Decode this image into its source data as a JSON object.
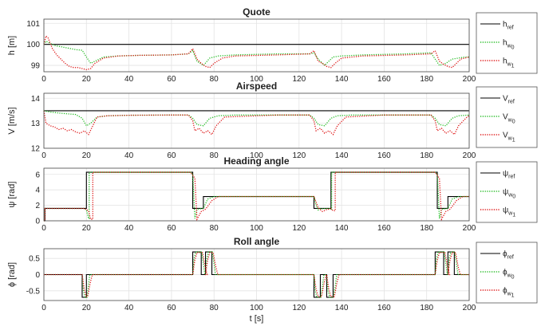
{
  "chart_data": [
    {
      "type": "line",
      "title": "Quote",
      "ylabel": "h [m]",
      "xlabel": "",
      "xlim": [
        0,
        200
      ],
      "ylim": [
        98.7,
        101.2
      ],
      "xticks": [
        "0",
        "20",
        "40",
        "60",
        "80",
        "100",
        "120",
        "140",
        "160",
        "180",
        "200"
      ],
      "yticks": [
        "99",
        "100",
        "101"
      ],
      "ytick_values": [
        99,
        100,
        101
      ],
      "grid": true,
      "legend_position": "right",
      "series": [
        {
          "name": "h",
          "sub": "ref",
          "color": "#000000",
          "dash": "solid",
          "x": [
            0,
            200
          ],
          "y": [
            100,
            100
          ]
        },
        {
          "name": "h",
          "sub": "w0",
          "sub_main": "w",
          "sub_sub": "0",
          "color": "#22bb22",
          "dash": "dotted",
          "x": [
            0,
            1,
            3,
            5,
            10,
            15,
            18,
            20,
            22,
            24,
            28,
            35,
            45,
            60,
            68,
            70,
            72,
            75,
            78,
            82,
            90,
            110,
            125,
            127,
            129,
            132,
            134,
            136,
            140,
            150,
            170,
            182,
            184,
            186,
            189,
            192,
            195,
            198,
            200
          ],
          "y": [
            100.0,
            100.15,
            100.05,
            99.95,
            99.85,
            99.75,
            99.72,
            99.4,
            99.1,
            99.2,
            99.4,
            99.45,
            99.48,
            99.5,
            99.55,
            99.7,
            99.2,
            99.0,
            99.35,
            99.45,
            99.5,
            99.55,
            99.55,
            99.6,
            99.3,
            99.0,
            99.2,
            99.4,
            99.45,
            99.5,
            99.55,
            99.6,
            99.3,
            99.0,
            99.1,
            99.3,
            99.35,
            99.4,
            99.4
          ]
        },
        {
          "name": "h",
          "sub": "w1",
          "sub_main": "w",
          "sub_sub": "1",
          "color": "#dd1111",
          "dash": "dotted",
          "x": [
            0,
            1,
            2,
            4,
            6,
            8,
            10,
            12,
            14,
            16,
            18,
            20,
            22,
            24,
            28,
            35,
            45,
            60,
            68,
            70,
            72,
            74,
            76,
            78,
            80,
            84,
            90,
            110,
            125,
            127,
            129,
            131,
            133,
            135,
            137,
            140,
            150,
            170,
            182,
            184,
            186,
            188,
            190,
            192,
            194,
            196,
            198,
            200
          ],
          "y": [
            100.0,
            100.4,
            100.3,
            99.8,
            99.5,
            99.3,
            99.1,
            98.95,
            98.9,
            98.9,
            98.85,
            98.8,
            98.85,
            99.1,
            99.35,
            99.45,
            99.48,
            99.5,
            99.55,
            99.8,
            99.3,
            99.1,
            98.95,
            98.9,
            99.1,
            99.35,
            99.45,
            99.5,
            99.55,
            99.7,
            99.2,
            99.1,
            98.95,
            98.9,
            99.1,
            99.35,
            99.45,
            99.5,
            99.55,
            99.7,
            99.2,
            99.05,
            98.95,
            98.9,
            99.1,
            99.3,
            99.35,
            99.4
          ]
        }
      ]
    },
    {
      "type": "line",
      "title": "Airspeed",
      "ylabel": "V [m/s]",
      "xlabel": "",
      "xlim": [
        0,
        200
      ],
      "ylim": [
        12,
        14.2
      ],
      "xticks": [
        "0",
        "20",
        "40",
        "60",
        "80",
        "100",
        "120",
        "140",
        "160",
        "180",
        "200"
      ],
      "yticks": [
        "12",
        "13",
        "14"
      ],
      "ytick_values": [
        12,
        13,
        14
      ],
      "grid": true,
      "legend_position": "right",
      "series": [
        {
          "name": "V",
          "sub": "ref",
          "color": "#000000",
          "dash": "solid",
          "x": [
            0,
            200
          ],
          "y": [
            13.5,
            13.5
          ]
        },
        {
          "name": "V",
          "sub": "w0",
          "sub_main": "w",
          "sub_sub": "0",
          "color": "#22bb22",
          "dash": "dotted",
          "x": [
            0,
            3,
            8,
            15,
            18,
            20,
            22,
            25,
            30,
            40,
            60,
            68,
            70,
            72,
            75,
            78,
            82,
            90,
            110,
            125,
            127,
            129,
            132,
            135,
            138,
            145,
            160,
            182,
            184,
            186,
            189,
            192,
            195,
            200
          ],
          "y": [
            13.5,
            13.45,
            13.4,
            13.35,
            13.2,
            12.9,
            13.0,
            13.25,
            13.3,
            13.32,
            13.33,
            13.33,
            13.2,
            12.95,
            12.9,
            13.2,
            13.3,
            13.33,
            13.33,
            13.33,
            13.2,
            12.95,
            12.9,
            13.2,
            13.3,
            13.33,
            13.33,
            13.33,
            13.2,
            12.95,
            12.9,
            13.2,
            13.3,
            13.33
          ]
        },
        {
          "name": "V",
          "sub": "w1",
          "sub_main": "w",
          "sub_sub": "1",
          "color": "#dd1111",
          "dash": "dotted",
          "x": [
            0,
            1,
            3,
            5,
            7,
            9,
            11,
            13,
            15,
            17,
            19,
            21,
            23,
            25,
            30,
            40,
            60,
            68,
            70,
            71,
            73,
            75,
            77,
            79,
            81,
            85,
            110,
            125,
            127,
            128,
            130,
            132,
            134,
            136,
            138,
            142,
            160,
            182,
            184,
            185,
            187,
            189,
            191,
            193,
            195,
            199,
            200
          ],
          "y": [
            13.5,
            13.0,
            12.9,
            12.85,
            12.75,
            12.8,
            12.7,
            12.75,
            12.65,
            12.6,
            12.7,
            12.55,
            12.9,
            13.25,
            13.3,
            13.32,
            13.33,
            13.33,
            13.1,
            12.7,
            12.8,
            12.6,
            12.7,
            12.55,
            12.9,
            13.25,
            13.33,
            13.33,
            13.1,
            12.7,
            12.8,
            12.6,
            12.7,
            12.55,
            12.9,
            13.25,
            13.33,
            13.33,
            13.1,
            12.7,
            12.8,
            12.6,
            12.7,
            12.55,
            12.9,
            13.25,
            13.3
          ]
        }
      ]
    },
    {
      "type": "line",
      "title": "Heading angle",
      "ylabel": "ψ [rad]",
      "xlabel": "",
      "xlim": [
        0,
        200
      ],
      "ylim": [
        0,
        6.8
      ],
      "xticks": [
        "0",
        "20",
        "40",
        "60",
        "80",
        "100",
        "120",
        "140",
        "160",
        "180",
        "200"
      ],
      "yticks": [
        "0",
        "2",
        "4",
        "6"
      ],
      "ytick_values": [
        0,
        2,
        4,
        6
      ],
      "grid": true,
      "legend_position": "right",
      "series": [
        {
          "name": "ψ",
          "sub": "ref",
          "color": "#000000",
          "dash": "solid",
          "x": [
            0,
            0.5,
            0.5,
            20,
            20,
            70,
            70,
            75,
            75,
            127,
            127,
            135,
            135,
            185,
            185,
            190,
            190,
            200
          ],
          "y": [
            0,
            0,
            1.6,
            1.6,
            6.28,
            6.28,
            1.6,
            1.6,
            3.14,
            3.14,
            1.6,
            1.6,
            6.28,
            6.28,
            1.6,
            1.6,
            3.14,
            3.14
          ]
        },
        {
          "name": "ψ",
          "sub": "w0",
          "sub_main": "w",
          "sub_sub": "0",
          "color": "#22bb22",
          "dash": "dotted",
          "x": [
            0,
            0.5,
            0.5,
            19,
            20,
            21,
            21.3,
            21.3,
            69,
            70,
            71,
            72,
            75,
            77,
            80,
            127,
            128,
            129,
            130,
            134,
            135,
            135.3,
            135.3,
            184,
            185,
            186,
            187,
            190,
            192,
            195,
            200
          ],
          "y": [
            0,
            0,
            1.6,
            1.6,
            1.4,
            0.3,
            0.3,
            6.28,
            6.28,
            6.0,
            0.3,
            1.5,
            1.6,
            2.8,
            3.14,
            3.14,
            2.0,
            1.4,
            1.55,
            1.6,
            1.5,
            1.5,
            6.28,
            6.28,
            6.0,
            0.3,
            1.5,
            1.6,
            2.8,
            3.14,
            3.14
          ]
        },
        {
          "name": "ψ",
          "sub": "w1",
          "sub_main": "w",
          "sub_sub": "1",
          "color": "#dd1111",
          "dash": "dotted",
          "x": [
            0,
            0.5,
            0.5,
            19,
            21,
            22,
            23,
            23,
            69,
            71,
            72,
            74,
            76,
            79,
            82,
            127,
            129,
            131,
            133,
            135,
            136,
            137,
            137,
            184,
            186,
            187,
            189,
            191,
            194,
            197,
            200
          ],
          "y": [
            0,
            0,
            1.6,
            1.6,
            1.3,
            0.2,
            0.2,
            6.28,
            6.28,
            5.5,
            0.2,
            1.2,
            1.5,
            2.6,
            3.14,
            3.14,
            1.7,
            1.2,
            1.45,
            1.55,
            1.3,
            1.3,
            6.28,
            6.28,
            5.5,
            0.2,
            1.2,
            1.5,
            2.6,
            3.14,
            3.14
          ]
        }
      ]
    },
    {
      "type": "line",
      "title": "Roll angle",
      "ylabel": "ϕ [rad]",
      "xlabel": "t [s]",
      "xlim": [
        0,
        200
      ],
      "ylim": [
        -0.8,
        0.8
      ],
      "xticks": [
        "0",
        "20",
        "40",
        "60",
        "80",
        "100",
        "120",
        "140",
        "160",
        "180",
        "200"
      ],
      "yticks": [
        "-0.5",
        "0",
        "0.5"
      ],
      "ytick_values": [
        -0.5,
        0,
        0.5
      ],
      "grid": true,
      "legend_position": "right",
      "series": [
        {
          "name": "ϕ",
          "sub": "ref",
          "color": "#000000",
          "dash": "solid",
          "x": [
            0,
            18,
            18,
            20,
            20,
            70,
            70,
            74,
            74,
            76,
            76,
            79,
            79,
            127,
            127,
            130,
            130,
            133,
            133,
            136,
            136,
            184,
            184,
            188,
            188,
            190,
            190,
            193,
            193,
            200
          ],
          "y": [
            0,
            0,
            -0.7,
            -0.7,
            0,
            0,
            0.7,
            0.7,
            0,
            0,
            0.7,
            0.7,
            0,
            0,
            -0.7,
            -0.7,
            0,
            0,
            -0.7,
            -0.7,
            0,
            0,
            0.7,
            0.7,
            0,
            0,
            0.7,
            0.7,
            0,
            0
          ]
        },
        {
          "name": "ϕ",
          "sub": "w0",
          "sub_main": "w",
          "sub_sub": "0",
          "color": "#22bb22",
          "dash": "dotted",
          "x": [
            0,
            18,
            18.6,
            19.4,
            20.3,
            21,
            21.6,
            70,
            70.6,
            71.4,
            74.2,
            75.1,
            75.7,
            76,
            76.6,
            77.4,
            79.2,
            80.1,
            80.7,
            127,
            127.6,
            128.4,
            130.2,
            131.1,
            131.7,
            133,
            133.6,
            134.4,
            136.2,
            137.1,
            137.7,
            184,
            184.6,
            185.4,
            188.2,
            189.1,
            189.7,
            190,
            190.6,
            191.4,
            193.2,
            194.1,
            194.7,
            200
          ],
          "y": [
            0,
            0,
            -0.5,
            -0.7,
            -0.7,
            -0.3,
            0,
            0,
            0.5,
            0.7,
            0.7,
            0.3,
            0,
            0,
            0.5,
            0.7,
            0.7,
            0.3,
            0,
            0,
            -0.5,
            -0.7,
            -0.7,
            -0.3,
            0,
            0,
            -0.5,
            -0.7,
            -0.7,
            -0.3,
            0,
            0,
            0.5,
            0.7,
            0.7,
            0.3,
            0,
            0,
            0.5,
            0.7,
            0.7,
            0.3,
            0,
            0
          ]
        },
        {
          "name": "ϕ",
          "sub": "w1",
          "sub_main": "w",
          "sub_sub": "1",
          "color": "#dd1111",
          "dash": "dotted",
          "x": [
            0,
            18,
            19,
            20,
            20.6,
            21.8,
            22.8,
            70,
            71,
            72,
            74.6,
            75.8,
            76.8,
            76,
            77,
            78,
            79.6,
            80.8,
            81.8,
            127,
            128,
            129,
            130.6,
            131.8,
            132.8,
            133,
            134,
            135,
            136.6,
            137.8,
            138.8,
            184,
            185,
            186,
            188.6,
            189.8,
            190.8,
            190,
            191,
            192,
            193.6,
            194.8,
            195.8,
            200
          ],
          "y": [
            0,
            0,
            -0.45,
            -0.68,
            -0.68,
            -0.25,
            0,
            0,
            0.45,
            0.68,
            0.68,
            0.25,
            0,
            0,
            0.45,
            0.68,
            0.68,
            0.25,
            0,
            0,
            -0.45,
            -0.68,
            -0.68,
            -0.25,
            0,
            0,
            -0.45,
            -0.68,
            -0.68,
            -0.25,
            0,
            0,
            0.45,
            0.68,
            0.68,
            0.25,
            0,
            0,
            0.45,
            0.68,
            0.68,
            0.25,
            0,
            0
          ]
        }
      ]
    }
  ]
}
